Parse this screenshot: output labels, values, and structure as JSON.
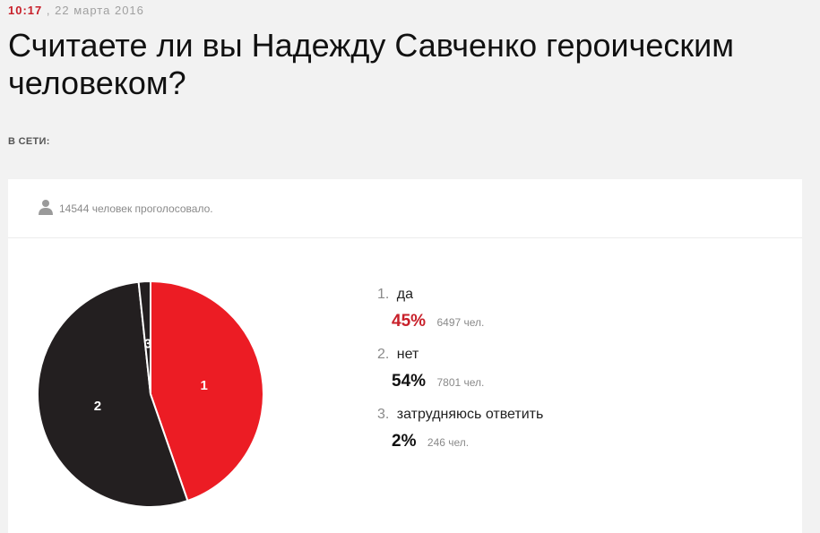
{
  "header": {
    "time": "10:17",
    "date_separator": ",",
    "date": "22 марта 2016",
    "title": "Считаете ли вы Надежду Савченко героическим человеком?",
    "online_label": "В СЕТИ:"
  },
  "poll": {
    "votes_text": "14544 человек проголосовало.",
    "options": [
      {
        "num": "1.",
        "label": "да",
        "percent": "45%",
        "count": "6497 чел."
      },
      {
        "num": "2.",
        "label": "нет",
        "percent": "54%",
        "count": "7801 чел."
      },
      {
        "num": "3.",
        "label": "затрудняюсь ответить",
        "percent": "2%",
        "count": "246 чел."
      }
    ]
  },
  "chart_data": {
    "type": "pie",
    "labels": [
      "1",
      "2",
      "3"
    ],
    "values": [
      6497,
      7801,
      246
    ],
    "colors": [
      "#ec1c24",
      "#231f20",
      "#231f20"
    ]
  }
}
